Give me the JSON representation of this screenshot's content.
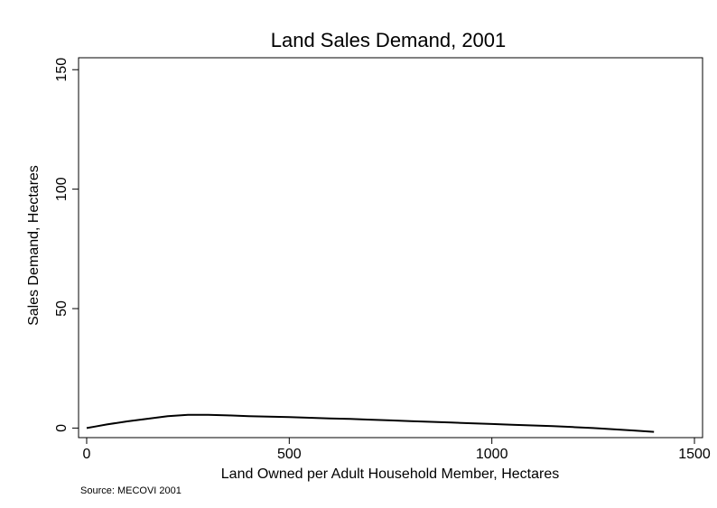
{
  "chart_data": {
    "type": "line",
    "title": "Land Sales Demand, 2001",
    "xlabel": "Land Owned per Adult Household Member, Hectares",
    "ylabel": "Sales Demand, Hectares",
    "xlim": [
      -20,
      1520
    ],
    "ylim": [
      -4,
      155
    ],
    "xticks": [
      0,
      500,
      1000,
      1500
    ],
    "yticks": [
      0,
      50,
      100,
      150
    ],
    "grid": false,
    "legend": "none",
    "series": [
      {
        "x": [
          0,
          20,
          50,
          100,
          150,
          200,
          250,
          300,
          350,
          400,
          450,
          500,
          550,
          600,
          650,
          700,
          750,
          800,
          850,
          900,
          950,
          1000,
          1050,
          1100,
          1150,
          1200,
          1250,
          1300,
          1350,
          1400
        ],
        "values": [
          0,
          0.6,
          1.5,
          2.8,
          3.9,
          5.0,
          5.5,
          5.5,
          5.3,
          5.0,
          4.8,
          4.6,
          4.3,
          4.0,
          3.8,
          3.5,
          3.2,
          2.9,
          2.6,
          2.3,
          2.0,
          1.7,
          1.4,
          1.1,
          0.8,
          0.4,
          0.0,
          -0.5,
          -1.0,
          -1.6
        ],
        "color": "#000000"
      }
    ]
  },
  "source_note": "Source: MECOVI 2001"
}
